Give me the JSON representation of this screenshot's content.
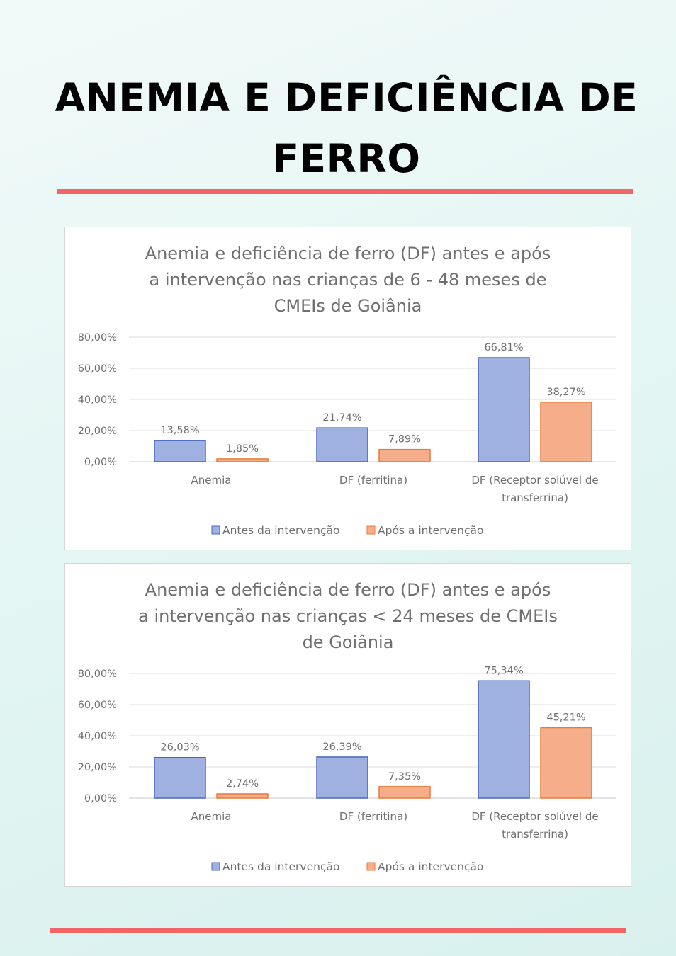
{
  "page": {
    "title_line1": "ANEMIA E DEFICIÊNCIA DE",
    "title_line2": "FERRO"
  },
  "colors": {
    "accent_rule": "#f26566",
    "series_before_fill": "#9fb1e0",
    "series_before_stroke": "#4a67c0",
    "series_after_fill": "#f6ae8a",
    "series_after_stroke": "#ea7a3c"
  },
  "chart_data": [
    {
      "type": "bar",
      "title_lines": [
        "Anemia e deficiência  de ferro (DF) antes e após",
        "a intervenção  nas crianças de 6 - 48 meses de",
        "CMEIs de Goiânia"
      ],
      "categories": [
        [
          "Anemia"
        ],
        [
          "DF (ferritina)"
        ],
        [
          "DF (Receptor solúvel de",
          "transferrina)"
        ]
      ],
      "series": [
        {
          "name": "Antes da intervenção",
          "values": [
            13.58,
            21.74,
            66.81
          ],
          "labels": [
            "13,58%",
            "21,74%",
            "66,81%"
          ]
        },
        {
          "name": "Após a intervenção",
          "values": [
            1.85,
            7.89,
            38.27
          ],
          "labels": [
            "1,85%",
            "7,89%",
            "38,27%"
          ]
        }
      ],
      "yticks": [
        "0,00%",
        "20,00%",
        "40,00%",
        "60,00%",
        "80,00%"
      ],
      "ylim": [
        0,
        80
      ],
      "grid": true,
      "legend": "bottom"
    },
    {
      "type": "bar",
      "title_lines": [
        "Anemia e deficiência  de ferro (DF) antes e após",
        "a intervenção  nas crianças < 24 meses de CMEIs",
        "de Goiânia"
      ],
      "categories": [
        [
          "Anemia"
        ],
        [
          "DF (ferritina)"
        ],
        [
          "DF (Receptor solúvel de",
          "transferrina)"
        ]
      ],
      "series": [
        {
          "name": "Antes da intervenção",
          "values": [
            26.03,
            26.39,
            75.34
          ],
          "labels": [
            "26,03%",
            "26,39%",
            "75,34%"
          ]
        },
        {
          "name": "Após a intervenção",
          "values": [
            2.74,
            7.35,
            45.21
          ],
          "labels": [
            "2,74%",
            "7,35%",
            "45,21%"
          ]
        }
      ],
      "yticks": [
        "0,00%",
        "20,00%",
        "40,00%",
        "60,00%",
        "80,00%"
      ],
      "ylim": [
        0,
        80
      ],
      "grid": true,
      "legend": "bottom"
    }
  ]
}
